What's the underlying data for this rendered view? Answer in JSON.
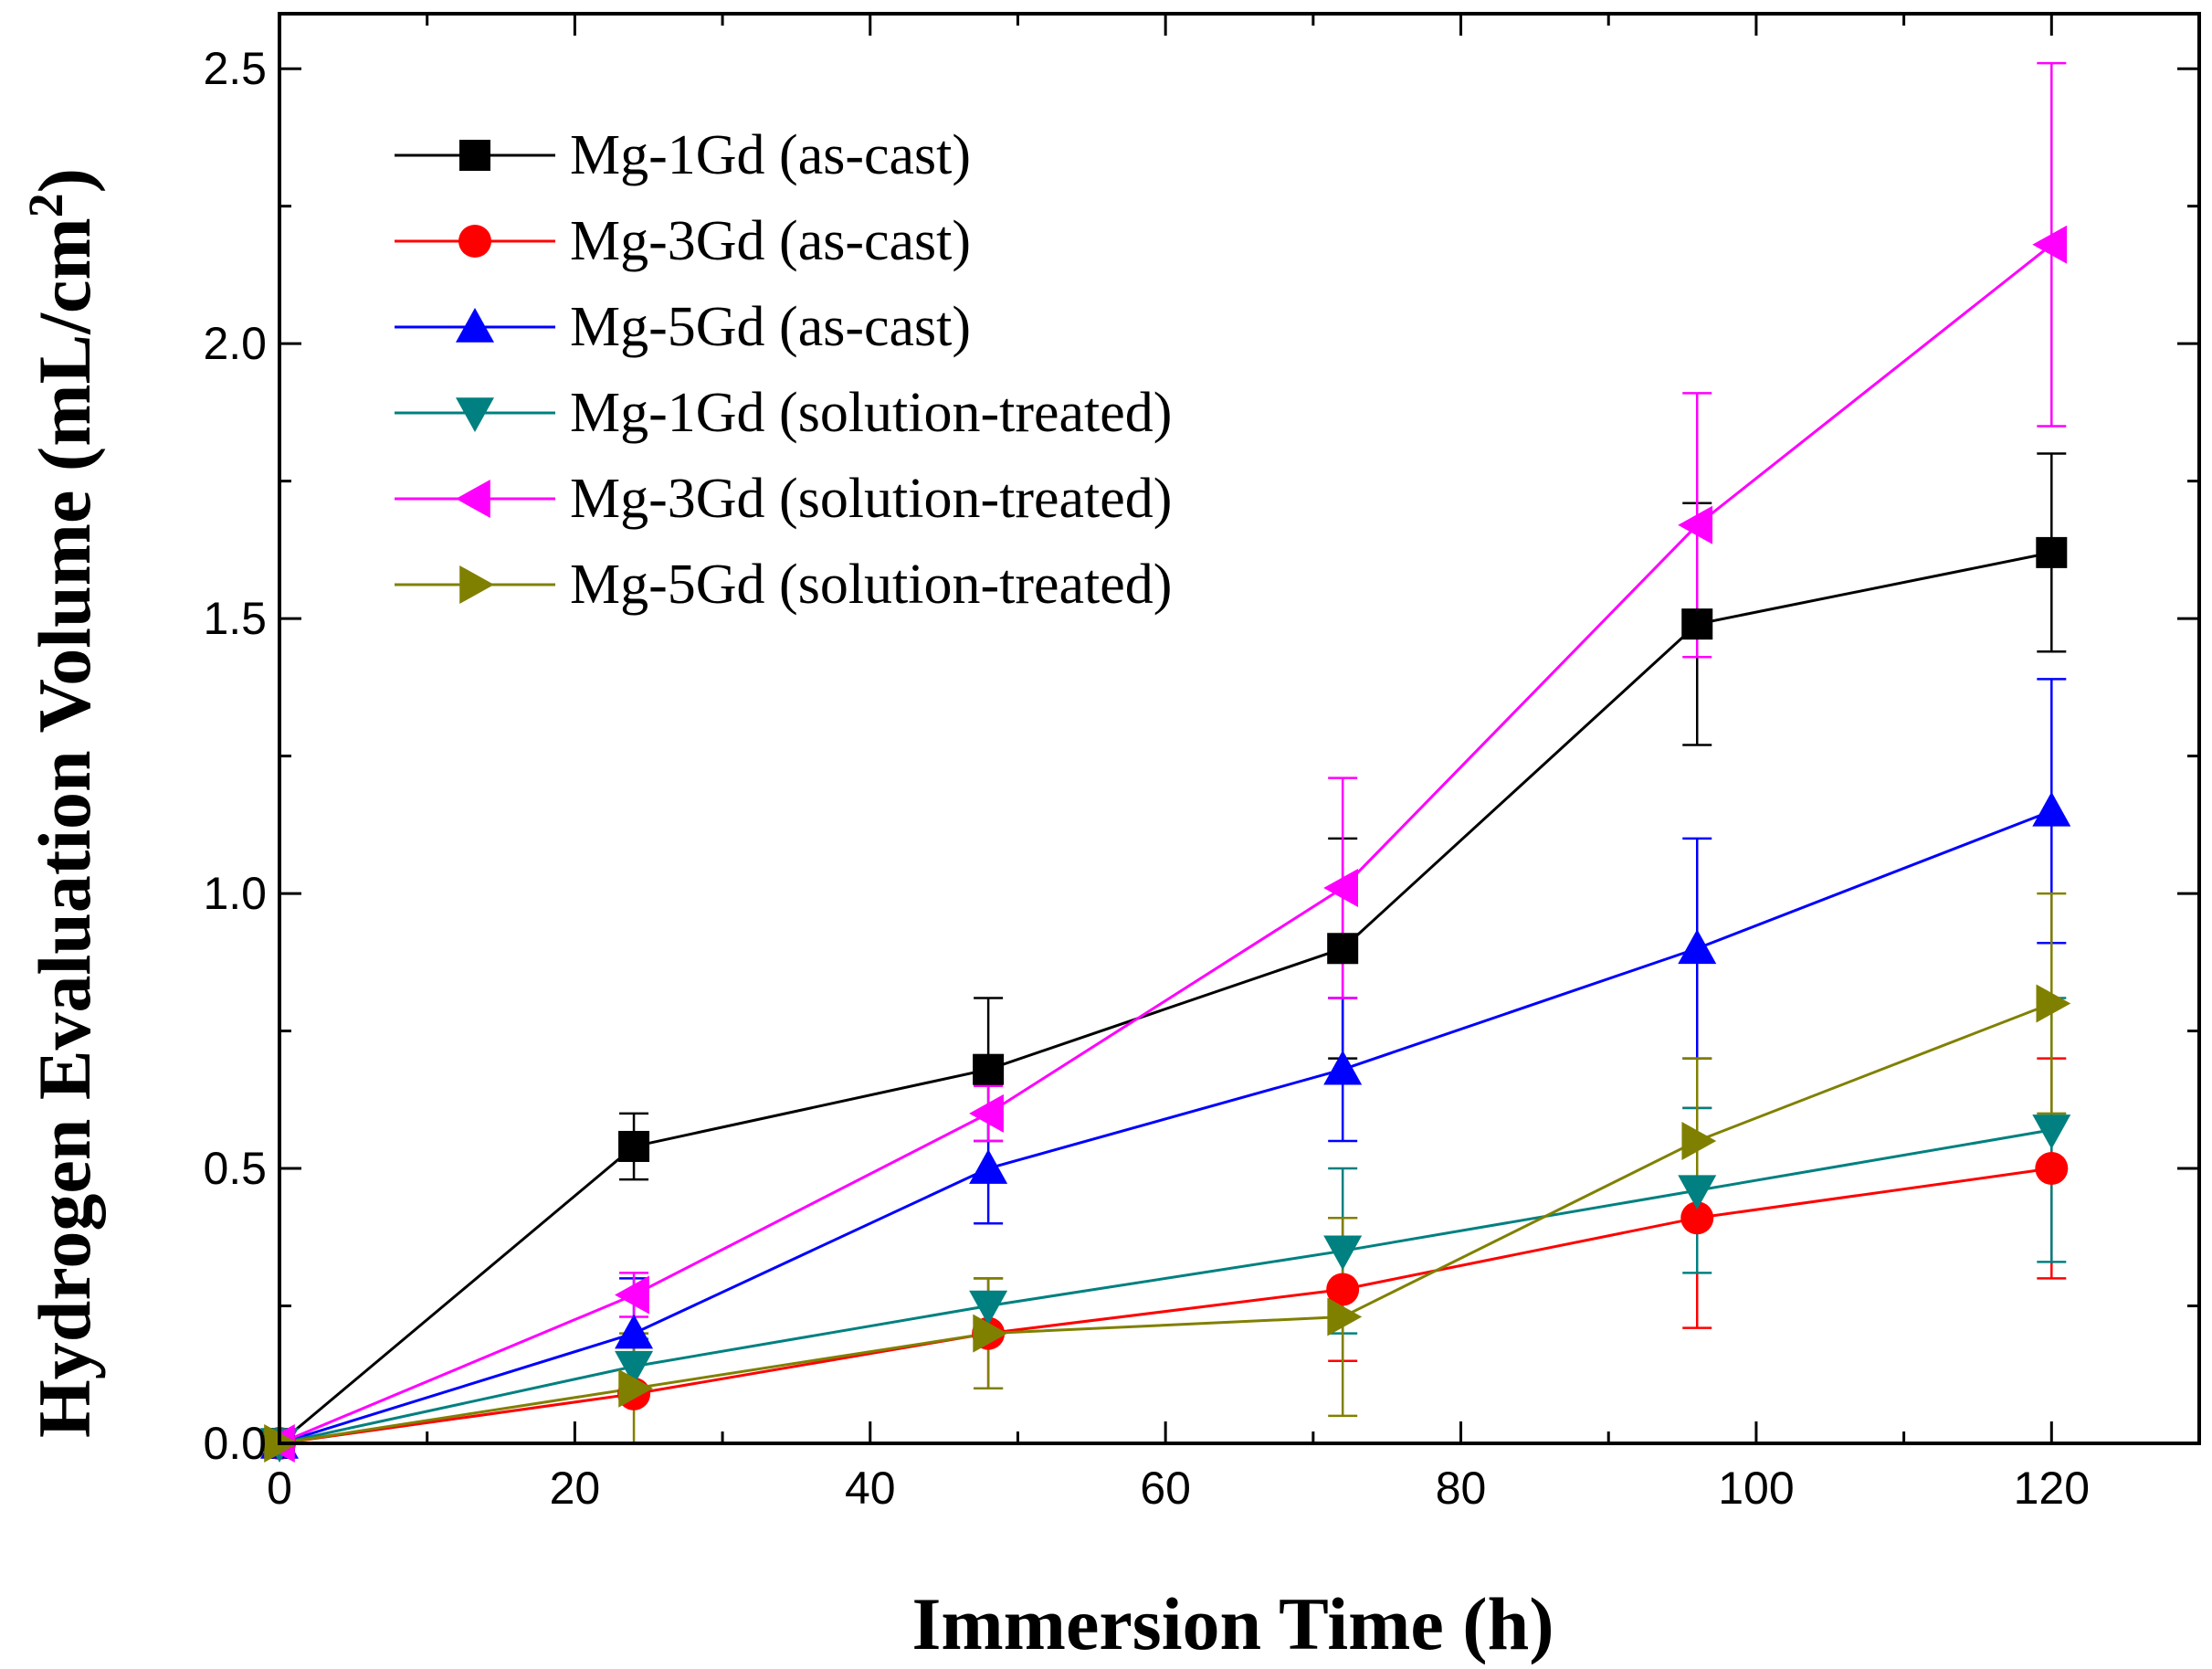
{
  "chart_data": {
    "type": "line",
    "title": "",
    "xlabel": "Immersion Time (h)",
    "ylabel": "Hydrogen Evaluation Volume (mL/cm",
    "ylabel_superscript": "2",
    "ylabel_suffix": ")",
    "xlim": [
      0,
      130
    ],
    "ylim": [
      0,
      2.6
    ],
    "x_ticks": [
      0,
      20,
      40,
      60,
      80,
      100,
      120
    ],
    "x_minor_ticks": [
      10,
      30,
      50,
      70,
      90,
      110
    ],
    "y_ticks": [
      0.0,
      0.5,
      1.0,
      1.5,
      2.0,
      2.5
    ],
    "y_tick_labels": [
      "0.0",
      "0.5",
      "1.0",
      "1.5",
      "2.0",
      "2.5"
    ],
    "y_minor_ticks": [
      0.25,
      0.75,
      1.25,
      1.75,
      2.25
    ],
    "legend_position": "top-left",
    "series": [
      {
        "name": "Mg-1Gd (as-cast)",
        "color": "#000000",
        "marker": "square",
        "x": [
          0,
          24,
          48,
          72,
          96,
          120
        ],
        "y": [
          0.0,
          0.54,
          0.68,
          0.9,
          1.49,
          1.62
        ],
        "err": [
          0,
          0.06,
          0.13,
          0.2,
          0.22,
          0.18
        ]
      },
      {
        "name": "Mg-3Gd (as-cast)",
        "color": "#ff0000",
        "marker": "circle",
        "x": [
          0,
          24,
          48,
          72,
          96,
          120
        ],
        "y": [
          0.0,
          0.09,
          0.2,
          0.28,
          0.41,
          0.5
        ],
        "err": [
          0,
          0.0,
          0.1,
          0.13,
          0.2,
          0.2
        ]
      },
      {
        "name": "Mg-5Gd (as-cast)",
        "color": "#0000ff",
        "marker": "triangle-up",
        "x": [
          0,
          24,
          48,
          72,
          96,
          120
        ],
        "y": [
          0.0,
          0.2,
          0.5,
          0.68,
          0.9,
          1.15
        ],
        "err": [
          0,
          0.1,
          0.1,
          0.13,
          0.2,
          0.24
        ]
      },
      {
        "name": "Mg-1Gd (solution-treated)",
        "color": "#008080",
        "marker": "triangle-down",
        "x": [
          0,
          24,
          48,
          72,
          96,
          120
        ],
        "y": [
          0.0,
          0.14,
          0.25,
          0.35,
          0.46,
          0.57
        ],
        "err": [
          0,
          0.05,
          0.05,
          0.15,
          0.15,
          0.24
        ]
      },
      {
        "name": "Mg-3Gd (solution-treated)",
        "color": "#ff00ff",
        "marker": "triangle-left",
        "x": [
          0,
          24,
          48,
          72,
          96,
          120
        ],
        "y": [
          0.0,
          0.27,
          0.6,
          1.01,
          1.67,
          2.18
        ],
        "err": [
          0,
          0.04,
          0.05,
          0.2,
          0.24,
          0.33
        ]
      },
      {
        "name": "Mg-5Gd (solution-treated)",
        "color": "#808000",
        "marker": "triangle-right",
        "x": [
          0,
          24,
          48,
          72,
          96,
          120
        ],
        "y": [
          0.0,
          0.1,
          0.2,
          0.23,
          0.55,
          0.8
        ],
        "err": [
          0,
          0.1,
          0.1,
          0.18,
          0.15,
          0.2
        ]
      }
    ]
  }
}
